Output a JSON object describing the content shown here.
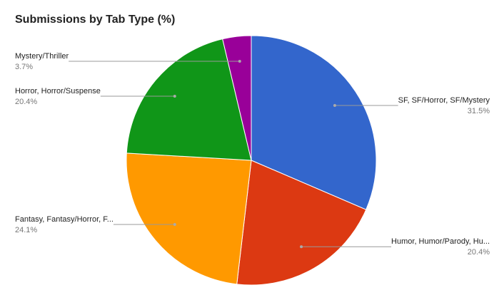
{
  "chart_data": {
    "type": "pie",
    "title": "Submissions by Tab Type (%)",
    "categories": [
      "SF, SF/Horror, SF/Mystery",
      "Humor, Humor/Parody, Hu...",
      "Fantasy, Fantasy/Horror, F...",
      "Horror, Horror/Suspense",
      "Mystery/Thriller"
    ],
    "values": [
      31.5,
      20.4,
      24.1,
      20.4,
      3.7
    ],
    "value_labels": [
      "31.5%",
      "20.4%",
      "24.1%",
      "20.4%",
      "3.7%"
    ],
    "colors": [
      "#3366cc",
      "#dc3912",
      "#ff9900",
      "#109618",
      "#990099"
    ]
  }
}
